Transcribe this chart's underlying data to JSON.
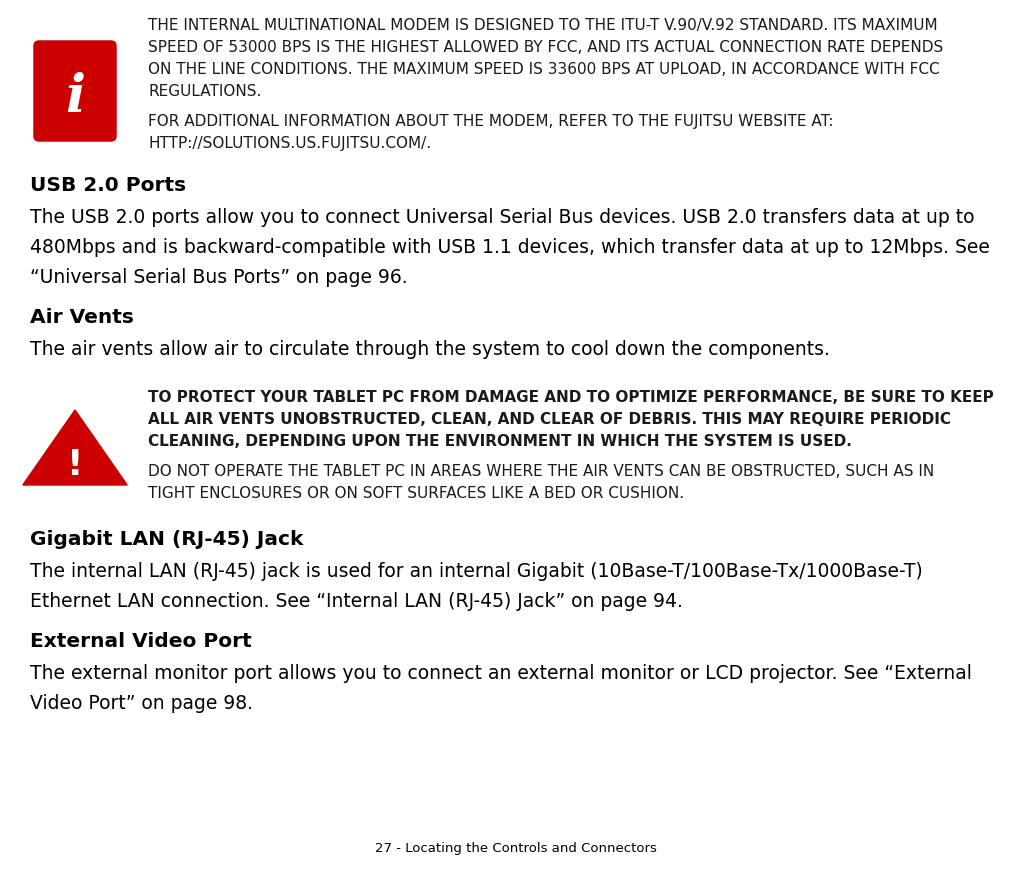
{
  "background_color": "#ffffff",
  "footer_text": "27 - Locating the Controls and Connectors",
  "info_lines1": [
    "THE INTERNAL MULTINATIONAL MODEM IS DESIGNED TO THE ITU-T V.90/V.92 STANDARD. ITS MAXIMUM",
    "SPEED OF 53000 BPS IS THE HIGHEST ALLOWED BY FCC, AND ITS ACTUAL CONNECTION RATE DEPENDS",
    "ON THE LINE CONDITIONS. THE MAXIMUM SPEED IS 33600 BPS AT UPLOAD, IN ACCORDANCE WITH FCC",
    "REGULATIONS."
  ],
  "info_lines2": [
    "FOR ADDITIONAL INFORMATION ABOUT THE MODEM, REFER TO THE FUJITSU WEBSITE AT:",
    "HTTP://SOLUTIONS.US.FUJITSU.COM/."
  ],
  "warn_lines1": [
    "TO PROTECT YOUR TABLET PC FROM DAMAGE AND TO OPTIMIZE PERFORMANCE, BE SURE TO KEEP",
    "ALL AIR VENTS UNOBSTRUCTED, CLEAN, AND CLEAR OF DEBRIS. THIS MAY REQUIRE PERIODIC",
    "CLEANING, DEPENDING UPON THE ENVIRONMENT IN WHICH THE SYSTEM IS USED."
  ],
  "warn_lines2": [
    "DO NOT OPERATE THE TABLET PC IN AREAS WHERE THE AIR VENTS CAN BE OBSTRUCTED, SUCH AS IN",
    "TIGHT ENCLOSURES OR ON SOFT SURFACES LIKE A BED OR CUSHION."
  ],
  "usb_heading": "USB 2.0 Ports",
  "usb_body": [
    "The USB 2.0 ports allow you to connect Universal Serial Bus devices. USB 2.0 transfers data at up to",
    "480Mbps and is backward-compatible with USB 1.1 devices, which transfer data at up to 12Mbps. See",
    "“Universal Serial Bus Ports” on page 96."
  ],
  "air_heading": "Air Vents",
  "air_body": [
    "The air vents allow air to circulate through the system to cool down the components."
  ],
  "lan_heading": "Gigabit LAN (RJ-45) Jack",
  "lan_body": [
    "The internal LAN (RJ-45) jack is used for an internal Gigabit (10Base-T/100Base-Tx/1000Base-T)",
    "Ethernet LAN connection. See “Internal LAN (RJ-45) Jack” on page 94."
  ],
  "ext_heading": "External Video Port",
  "ext_body": [
    "The external monitor port allows you to connect an external monitor or LCD projector. See “External",
    "Video Port” on page 98."
  ],
  "icon_color": "#cc0000",
  "text_color": "#000000",
  "note_color": "#1a1a1a"
}
